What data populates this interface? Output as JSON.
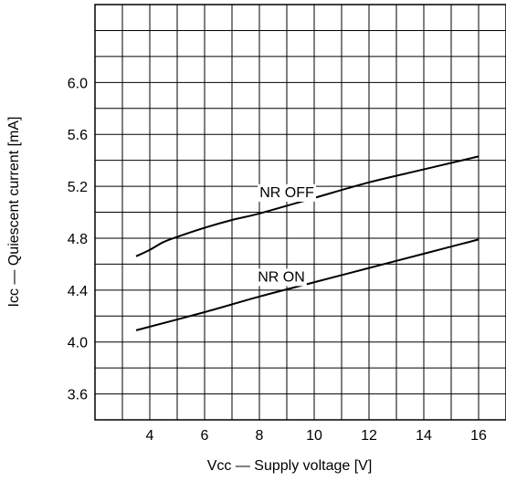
{
  "chart_data": {
    "type": "line",
    "xlabel": "Vcc — Supply voltage  [V]",
    "ylabel": "Icc — Quiescent current  [mA]",
    "xlim": [
      2,
      17
    ],
    "ylim": [
      3.4,
      6.6
    ],
    "xticks": [
      4,
      6,
      8,
      10,
      12,
      14,
      16
    ],
    "yticks": [
      3.6,
      4.0,
      4.4,
      4.8,
      5.2,
      5.6,
      6.0
    ],
    "xtick_labels": [
      "4",
      "6",
      "8",
      "10",
      "12",
      "14",
      "16"
    ],
    "ytick_labels": [
      "3.6",
      "4.0",
      "4.4",
      "4.8",
      "5.2",
      "5.6",
      "6.0"
    ],
    "grid": true,
    "series": [
      {
        "name": "NR OFF",
        "x": [
          3.5,
          4.0,
          4.5,
          5.0,
          6.0,
          7.0,
          8.0,
          10.0,
          12.0,
          14.0,
          16.0
        ],
        "y": [
          4.66,
          4.71,
          4.77,
          4.81,
          4.88,
          4.94,
          4.99,
          5.11,
          5.23,
          5.33,
          5.43
        ]
      },
      {
        "name": "NR ON",
        "x": [
          3.5,
          6.0,
          8.0,
          10.0,
          12.0,
          14.0,
          16.0
        ],
        "y": [
          4.09,
          4.23,
          4.35,
          4.46,
          4.57,
          4.68,
          4.79
        ]
      }
    ]
  }
}
